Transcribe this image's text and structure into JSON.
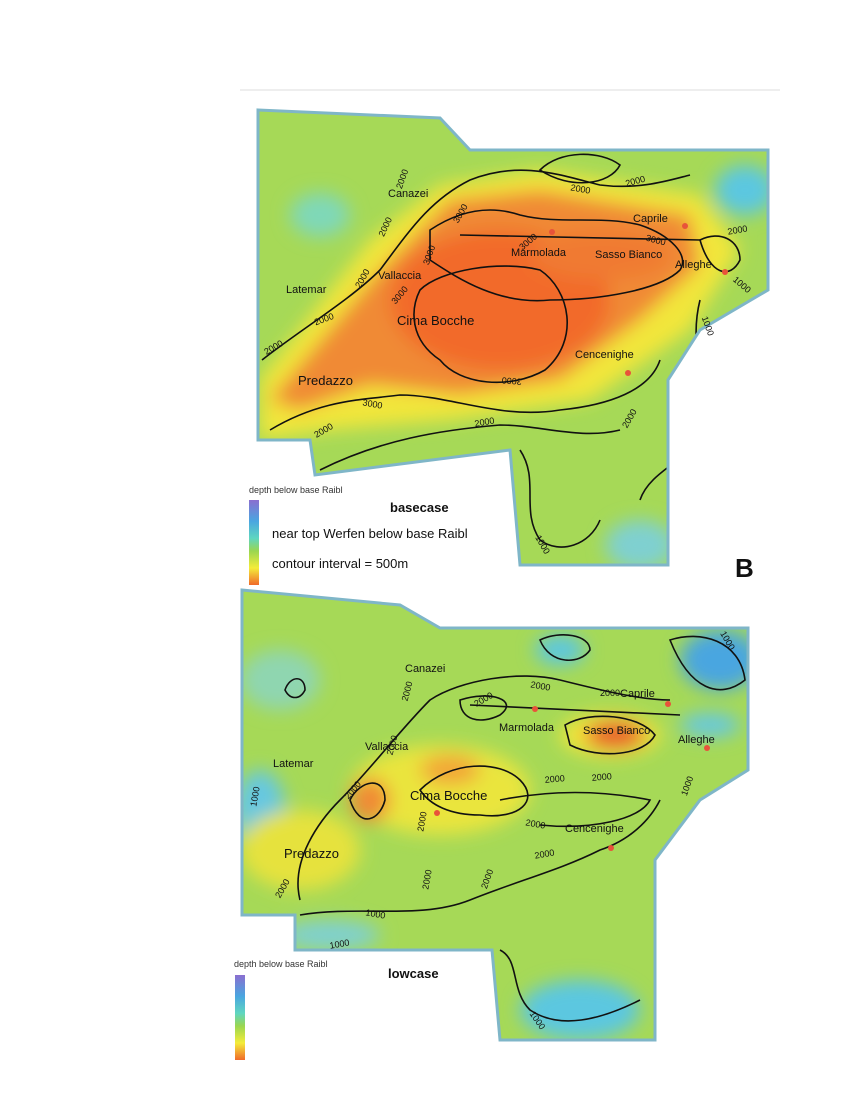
{
  "panel_letter": "B",
  "maps": [
    {
      "case": "basecase",
      "legend_title": "depth below base Raibl",
      "legend_lines": [
        "near top Werfen below base Raibl",
        "contour interval = 500m"
      ],
      "places": [
        "Canazei",
        "Caprile",
        "Vallaccia",
        "Marmolada",
        "Sasso Bianco",
        "Alleghe",
        "Latemar",
        "Cima Bocche",
        "Cencenighe",
        "Predazzo"
      ],
      "contour_labels": [
        2000,
        3000,
        2000,
        3000,
        2000,
        3000,
        2000,
        2000,
        3000,
        2000,
        2000,
        3000,
        3000,
        2000,
        1000,
        1000,
        3000,
        2000,
        2000,
        2000,
        1000
      ]
    },
    {
      "case": "lowcase",
      "legend_title": "depth below base Raibl",
      "places": [
        "Canazei",
        "Caprile",
        "Vallaccia",
        "Marmolada",
        "Sasso Bianco",
        "Alleghe",
        "Latemar",
        "Cima Bocche",
        "Cencenighe",
        "Predazzo"
      ],
      "contour_labels": [
        2000,
        2000,
        2000,
        2000,
        2000,
        2000,
        2000,
        2000,
        1000,
        1000,
        1000,
        2000,
        2000,
        2000,
        2000,
        2000,
        2000,
        1000,
        1000,
        1000
      ]
    }
  ]
}
